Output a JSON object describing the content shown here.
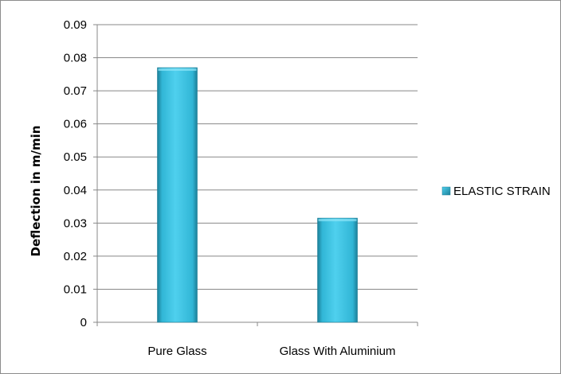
{
  "chart_data": {
    "type": "bar",
    "categories": [
      "Pure Glass",
      "Glass With Aluminium"
    ],
    "series": [
      {
        "name": "ELASTIC STRAIN",
        "values": [
          0.077,
          0.0315
        ]
      }
    ],
    "title": "",
    "xlabel": "",
    "ylabel": "Deflection in m/min",
    "ylim": [
      0,
      0.09
    ],
    "yticks": [
      "0",
      "0.01",
      "0.02",
      "0.03",
      "0.04",
      "0.05",
      "0.06",
      "0.07",
      "0.08",
      "0.09"
    ],
    "grid": true,
    "legend_position": "right",
    "colors": {
      "bar_light": "#4fd0ee",
      "bar_mid": "#31b6d6",
      "bar_dark": "#1c7f98",
      "gridline": "#888888"
    }
  }
}
